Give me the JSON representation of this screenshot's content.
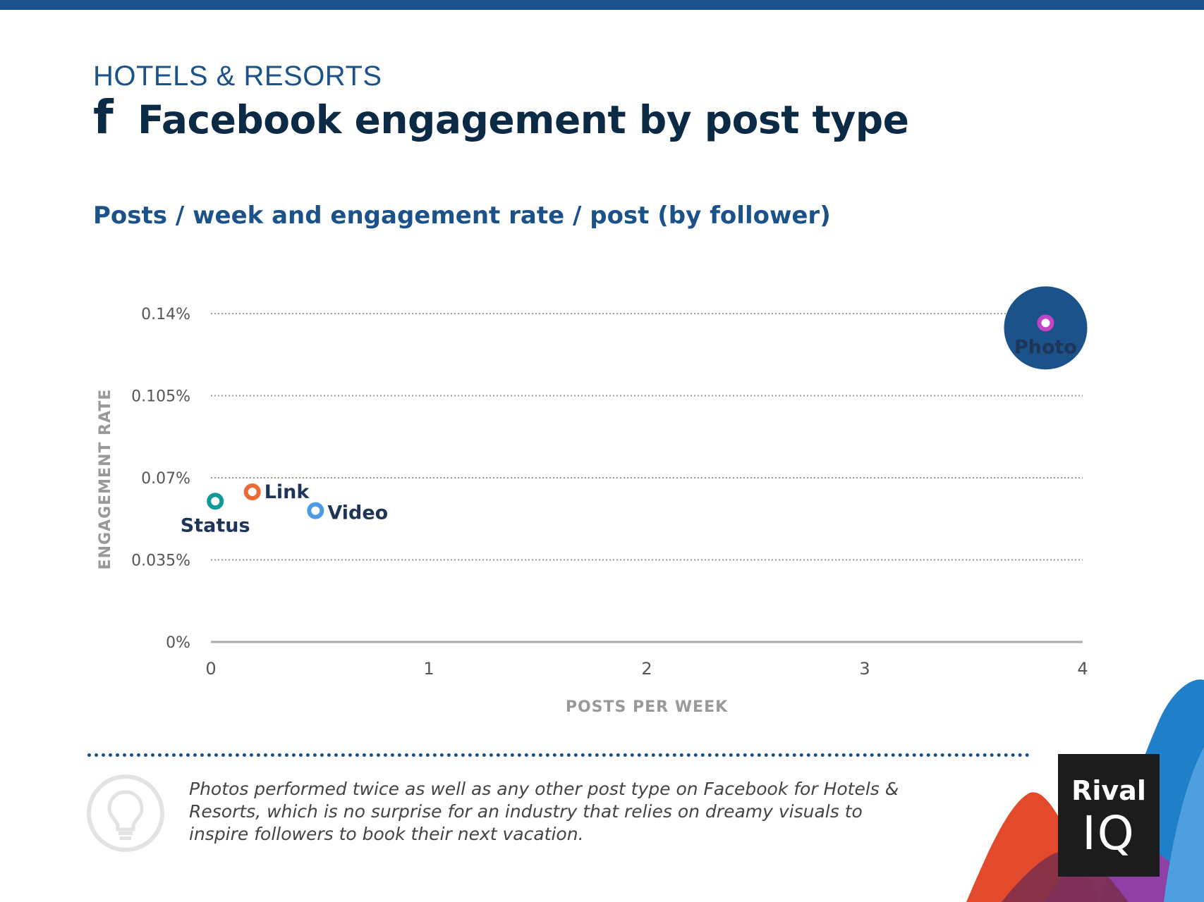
{
  "header": {
    "category": "HOTELS & RESORTS",
    "title": "Facebook engagement by post type",
    "subtitle": "Posts / week and engagement rate / post (by follower)",
    "icon": "facebook-icon"
  },
  "chart_data": {
    "type": "scatter",
    "xlabel": "POSTS PER WEEK",
    "ylabel": "ENGAGEMENT RATE",
    "xlim": [
      0,
      4
    ],
    "ylim": [
      0,
      0.14
    ],
    "x_ticks": [
      "0",
      "1",
      "2",
      "3",
      "4"
    ],
    "y_ticks": [
      "0%",
      "0.035%",
      "0.07%",
      "0.105%",
      "0.14%"
    ],
    "grid": true,
    "points": [
      {
        "label": "Status",
        "x": 0.02,
        "y": 0.06,
        "color": "#0e9a97"
      },
      {
        "label": "Link",
        "x": 0.19,
        "y": 0.064,
        "color": "#ea6b35"
      },
      {
        "label": "Video",
        "x": 0.48,
        "y": 0.056,
        "color": "#4a9be8"
      },
      {
        "label": "Photo",
        "x": 3.83,
        "y": 0.136,
        "color": "#bf45c4",
        "highlight": "#1a5289"
      }
    ]
  },
  "footer": {
    "insight": "Photos performed twice as well as any other post type on Facebook for Hotels & Resorts, which is no surprise for an industry that relies on dreamy visuals to inspire followers to book their next vacation.",
    "icon": "lightbulb-icon",
    "logo_top": "Rival",
    "logo_bottom": "IQ"
  }
}
